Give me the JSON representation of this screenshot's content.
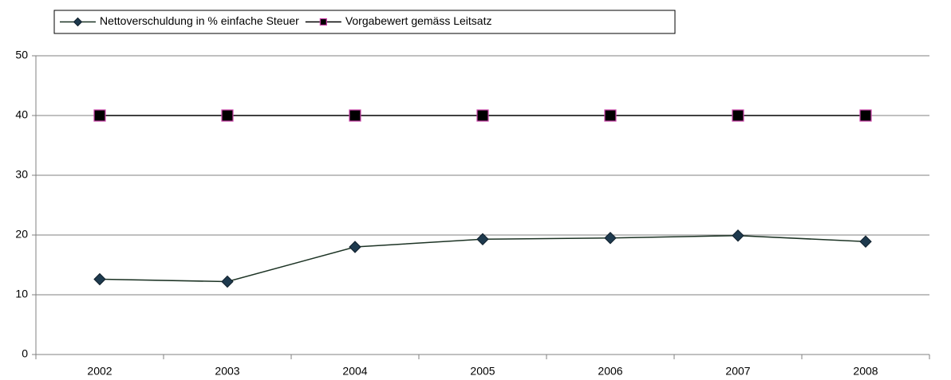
{
  "chart_data": {
    "type": "line",
    "categories": [
      "2002",
      "2003",
      "2004",
      "2005",
      "2006",
      "2007",
      "2008"
    ],
    "series": [
      {
        "name": "Nettoverschuldung in % einfache Steuer",
        "color": "#1c3324",
        "marker": "diamond",
        "marker_color": "#1e3a4e",
        "marker_edge": "#0f1f2b",
        "values": [
          12.6,
          12.2,
          18.0,
          19.3,
          19.5,
          19.9,
          18.9
        ]
      },
      {
        "name": "Vorgabewert gemäss Leitsatz",
        "color": "#000000",
        "marker": "square",
        "marker_color": "#000000",
        "marker_edge": "#cc44aa",
        "values": [
          40,
          40,
          40,
          40,
          40,
          40,
          40
        ]
      }
    ],
    "ylim": [
      0,
      50
    ],
    "yticks": [
      0,
      10,
      20,
      30,
      40,
      50
    ],
    "grid": true,
    "legend": "top"
  }
}
